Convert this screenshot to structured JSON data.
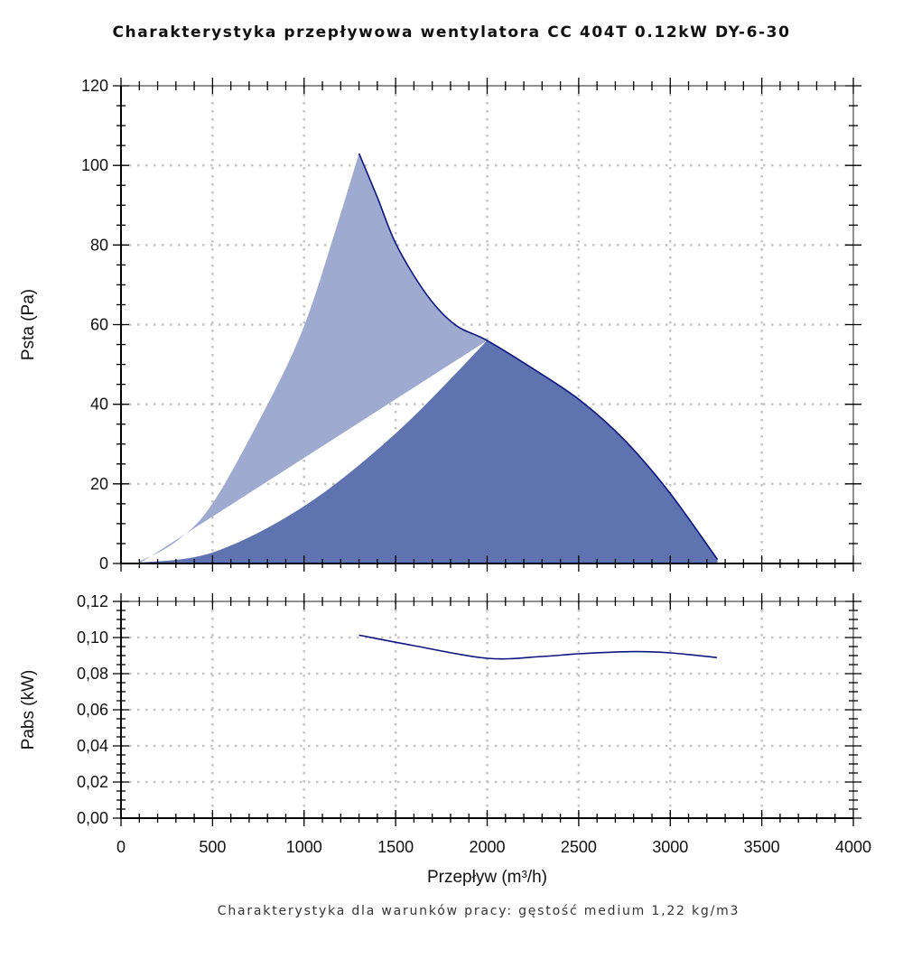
{
  "chart_data": [
    {
      "type": "area",
      "title": "Charakterystyka przepływowa wentylatora CC 404T 0.12kW DY-6-30",
      "xlabel": "Przepływ (m³/h)",
      "ylabel": "Psta (Pa)",
      "xlim": [
        0,
        4000
      ],
      "ylim": [
        0,
        120
      ],
      "xticks": [
        "0",
        "500",
        "1000",
        "1500",
        "2000",
        "2500",
        "3000",
        "3500",
        "4000"
      ],
      "yticks": [
        "0",
        "20",
        "40",
        "60",
        "80",
        "100",
        "120"
      ],
      "grid": true,
      "series": [
        {
          "name": "fan-curve",
          "x": [
            1300,
            1400,
            1505,
            1670,
            1824,
            2000,
            2265,
            2507,
            2750,
            2993,
            3258
          ],
          "y": [
            103,
            92,
            80,
            67.5,
            60,
            56,
            48.5,
            41,
            31,
            18,
            1
          ]
        },
        {
          "name": "system-curve-upper",
          "x": [
            100,
            300,
            503,
            812,
            1003,
            1164,
            1300
          ],
          "y": [
            0.5,
            5.5,
            15.3,
            41,
            60,
            82.6,
            103
          ]
        },
        {
          "name": "system-curve-lower",
          "x": [
            100,
            503,
            1003,
            1508,
            2000
          ],
          "y": [
            0.2,
            2.8,
            14.5,
            33,
            56
          ]
        }
      ],
      "colors": {
        "light_fill": "#9eaad0",
        "dark_fill": "#5f73b1",
        "line": "#0c1680"
      }
    },
    {
      "type": "line",
      "xlabel": "Przepływ (m³/h)",
      "ylabel": "Pabs (kW)",
      "xlim": [
        0,
        4000
      ],
      "ylim": [
        0,
        0.12
      ],
      "xticks": [
        "0",
        "500",
        "1000",
        "1500",
        "2000",
        "2500",
        "3000",
        "3500",
        "4000"
      ],
      "yticks": [
        "0,00",
        "0,02",
        "0,04",
        "0,06",
        "0,08",
        "0,10",
        "0,12"
      ],
      "grid": true,
      "series": [
        {
          "name": "power",
          "x": [
            1300,
            1600,
            2000,
            2300,
            2500,
            2800,
            3000,
            3255
          ],
          "y": [
            0.1013,
            0.0955,
            0.0885,
            0.0895,
            0.091,
            0.0922,
            0.0915,
            0.0889
          ]
        }
      ]
    }
  ],
  "footer": "Charakterystyka dla warunków pracy: gęstość medium 1,22 kg/m3"
}
